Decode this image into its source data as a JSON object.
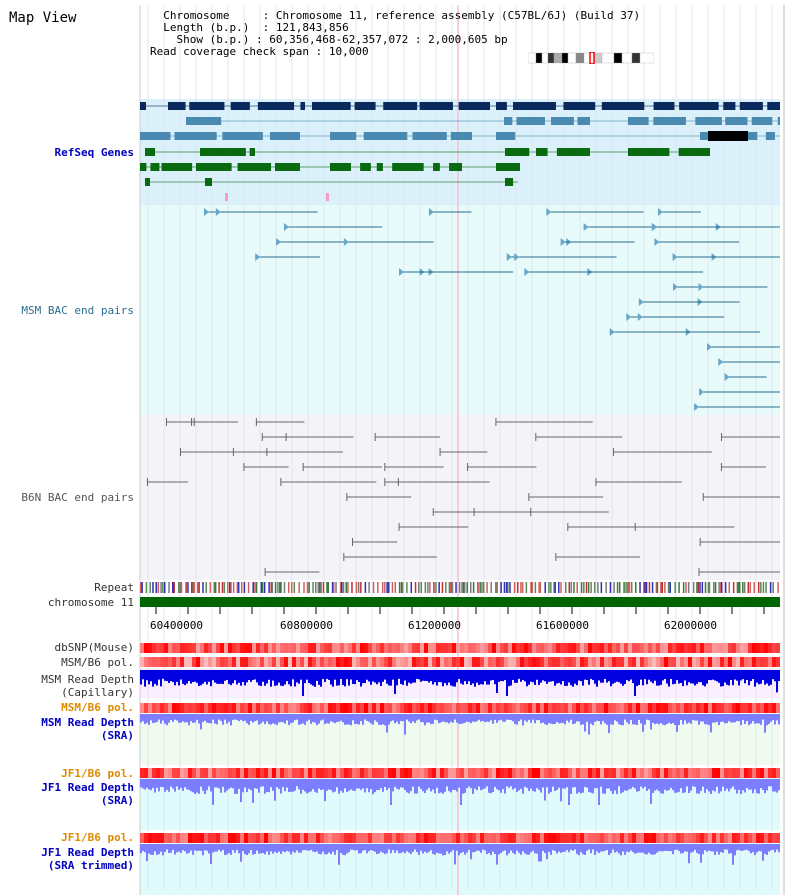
{
  "header": {
    "title": "Map View",
    "chromosome_key": "Chromosome",
    "chromosome_value": "Chromosome 11, reference assembly (C57BL/6J) (Build 37)",
    "length_key": "Length (b.p.)",
    "length_value": "121,843,856",
    "show_key": "Show (b.p.)",
    "show_value": "60,356,468-62,357,072 : 2,000,605 bp",
    "coverage_key": "Read coverage check span",
    "coverage_value": "10,000"
  },
  "tracks": {
    "refseq": "RefSeq Genes",
    "msm_bac": "MSM BAC end pairs",
    "b6n_bac": "B6N BAC end pairs",
    "repeat": "Repeat",
    "chromosome": "chromosome 11",
    "dbsnp": "dbSNP(Mouse)",
    "msm_b6_pol": "MSM/B6 pol.",
    "msm_depth_cap_1": "MSM Read Depth",
    "msm_depth_cap_2": "(Capillary)",
    "msm_b6_pol_2": "MSM/B6 pol.",
    "msm_depth_sra_1": "MSM Read Depth",
    "msm_depth_sra_2": "(SRA)",
    "jf1_b6_pol": "JF1/B6 pol.",
    "jf1_depth_sra_1": "JF1 Read Depth",
    "jf1_depth_sra_2": "(SRA)",
    "jf1_b6_pol_2": "JF1/B6 pol.",
    "jf1_depth_trim_1": "JF1 Read Depth",
    "jf1_depth_trim_2": "(SRA trimmed)"
  },
  "axis": {
    "ticks": [
      "60400000",
      "60800000",
      "61200000",
      "61600000",
      "62000000"
    ]
  },
  "colors": {
    "refseq_bg": "#daf0fb",
    "msm_bg": "#e8fbfb",
    "b6n_bg": "#f4f4f8",
    "chrom_bar": "#006400",
    "refseq_navy": "#0a2a5e",
    "refseq_steel": "#4a8ab0",
    "refseq_green": "#0a6a10",
    "msm_line": "#2a6e8f",
    "b6n_line": "#666666",
    "depth_dark": "#0000e0",
    "depth_light": "#7d7dff",
    "pol_red": "#ff3a3a"
  }
}
